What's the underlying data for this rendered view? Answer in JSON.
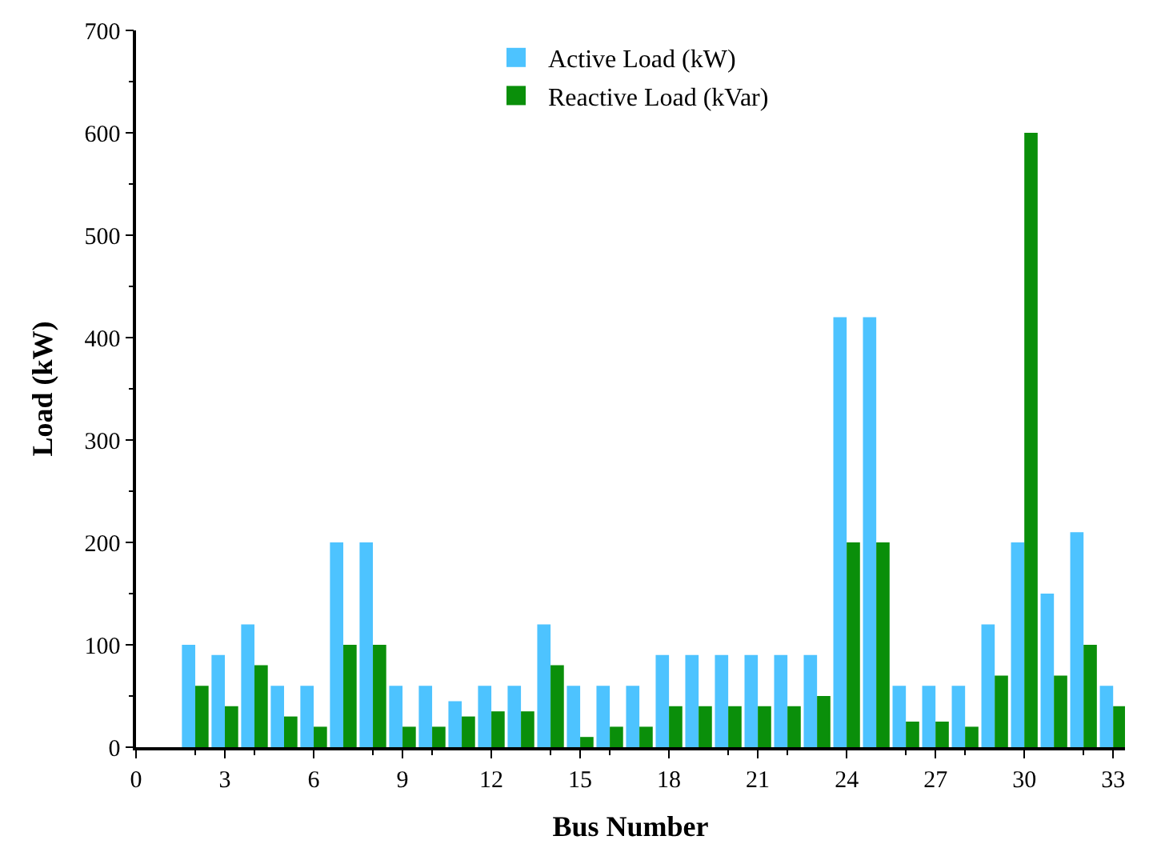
{
  "chart_data": {
    "type": "bar",
    "xlabel": "Bus Number",
    "ylabel": "Load (kW)",
    "x": [
      2,
      3,
      4,
      5,
      6,
      7,
      8,
      9,
      10,
      11,
      12,
      13,
      14,
      15,
      16,
      17,
      18,
      19,
      20,
      21,
      22,
      23,
      24,
      25,
      26,
      27,
      28,
      29,
      30,
      31,
      32,
      33
    ],
    "series": [
      {
        "name": "Active Load (kW)",
        "color": "#4dc3ff",
        "values": [
          100,
          90,
          120,
          60,
          60,
          200,
          200,
          60,
          60,
          45,
          60,
          60,
          120,
          60,
          60,
          60,
          90,
          90,
          90,
          90,
          90,
          90,
          420,
          420,
          60,
          60,
          60,
          120,
          200,
          150,
          210,
          60
        ]
      },
      {
        "name": "Reactive Load (kVar)",
        "color": "#0a8f0a",
        "values": [
          60,
          40,
          80,
          30,
          20,
          100,
          100,
          20,
          20,
          30,
          35,
          35,
          80,
          10,
          20,
          20,
          40,
          40,
          40,
          40,
          40,
          50,
          200,
          200,
          25,
          25,
          20,
          70,
          600,
          70,
          100,
          40
        ]
      }
    ],
    "xlim": [
      0,
      33.4
    ],
    "xticks": [
      0,
      3,
      6,
      9,
      12,
      15,
      18,
      21,
      24,
      27,
      30,
      33
    ],
    "ylim": [
      0,
      700
    ],
    "yticks": [
      0,
      100,
      200,
      300,
      400,
      500,
      600,
      700
    ],
    "legend": "top"
  }
}
